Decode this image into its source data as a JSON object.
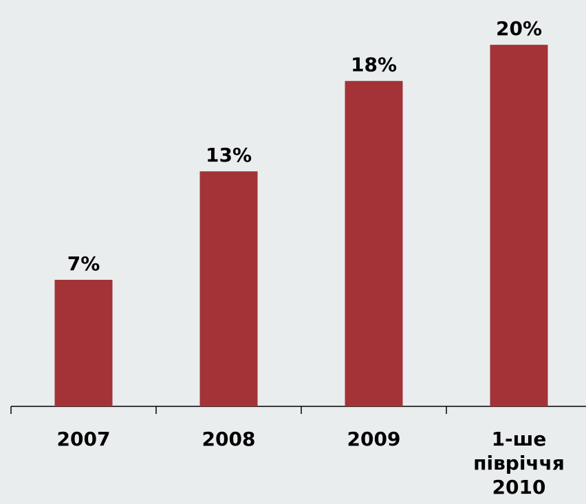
{
  "chart_data": {
    "type": "bar",
    "categories": [
      [
        "2007"
      ],
      [
        "2008"
      ],
      [
        "2009"
      ],
      [
        "1-ше",
        "півріччя",
        "2010"
      ]
    ],
    "values": [
      7,
      13,
      18,
      20
    ],
    "data_labels": [
      "7%",
      "13%",
      "18%",
      "20%"
    ],
    "ylim": [
      0,
      20.5
    ],
    "grid": false,
    "legend": "none",
    "bar_color": "#a33336",
    "background": "#e9edee"
  }
}
